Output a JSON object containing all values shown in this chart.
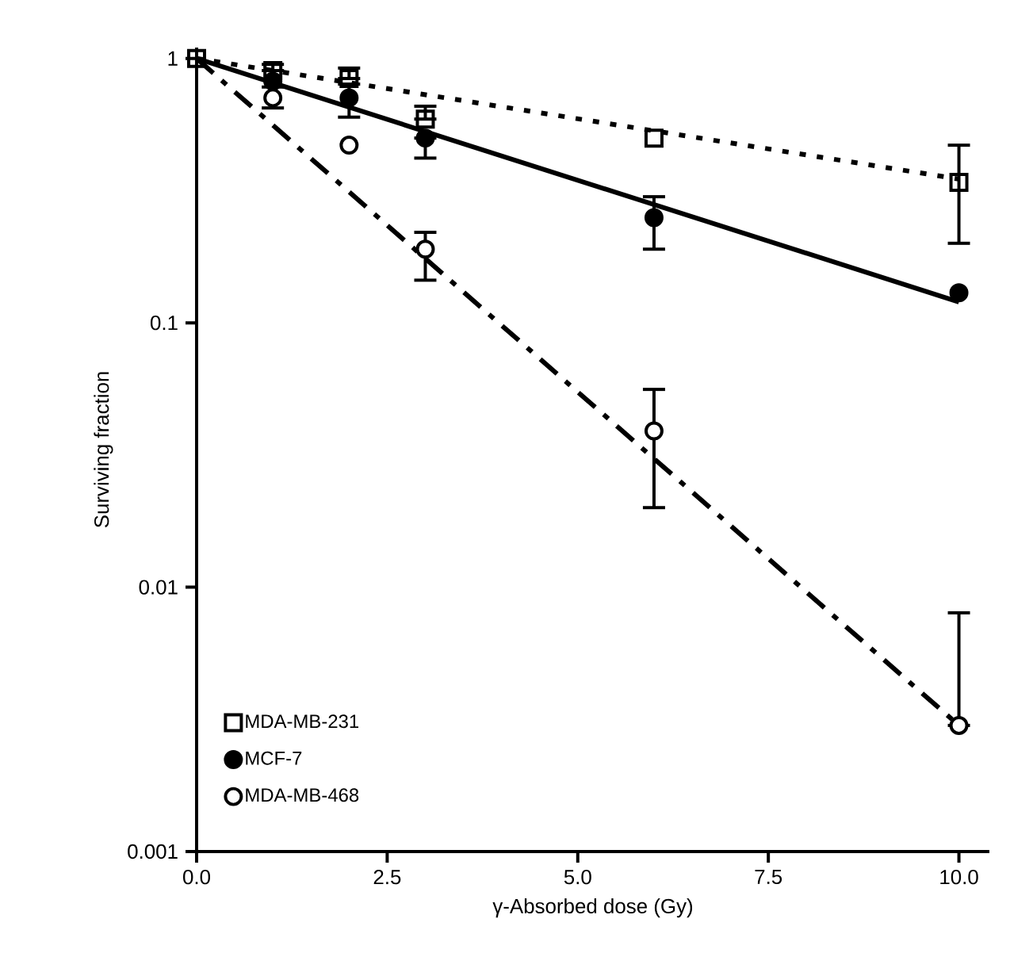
{
  "chart_data": {
    "type": "scatter",
    "xlabel": "γ-Absorbed dose (Gy)",
    "ylabel": "Surviving fraction",
    "log": "y",
    "grid": false,
    "legend": "bottom left",
    "xlim": [
      0,
      10.4
    ],
    "ylim": [
      0.001,
      1.1
    ],
    "xticks": [
      {
        "value": 0,
        "label": "0.0"
      },
      {
        "value": 2.5,
        "label": "2.5"
      },
      {
        "value": 5,
        "label": "5.0"
      },
      {
        "value": 7.5,
        "label": "7.5"
      },
      {
        "value": 10,
        "label": "10.0"
      }
    ],
    "yticks": [
      1,
      0.1,
      0.01,
      0.001
    ],
    "series": [
      {
        "name": "MDA-MB-231",
        "type": "scatter",
        "marker": "square",
        "color": "#000000",
        "x": [
          0,
          1,
          2,
          3,
          6,
          10
        ],
        "values": [
          1,
          0.9,
          0.84,
          0.59,
          0.5,
          0.34
        ],
        "errors": [
          null,
          [
            0.9,
            0.95
          ],
          [
            0.84,
            0.92
          ],
          [
            0.59,
            0.66
          ],
          null,
          [
            0.2,
            0.47
          ]
        ]
      },
      {
        "name": "MCF-7",
        "type": "scatter",
        "marker": "circle",
        "color": "#000000",
        "x": [
          1,
          2,
          3,
          6,
          10
        ],
        "values": [
          0.82,
          0.71,
          0.5,
          0.25,
          0.13
        ],
        "errors": [
          null,
          [
            0.6,
            0.8
          ],
          [
            0.42,
            0.5
          ],
          [
            0.19,
            0.3
          ],
          null
        ]
      },
      {
        "name": "MDA-MB-468",
        "type": "scatter",
        "marker": "circle",
        "color": "#000000",
        "x": [
          1,
          2,
          3,
          6,
          10
        ],
        "values": [
          0.71,
          0.47,
          0.19,
          0.039,
          0.003
        ],
        "errors": [
          [
            0.65,
            0.78
          ],
          null,
          [
            0.145,
            0.22
          ],
          [
            0.02,
            0.056
          ],
          [
            0.003,
            0.008
          ]
        ]
      },
      {
        "type": "line",
        "line_style": "dotted",
        "color": "#000000",
        "x": [
          0,
          10
        ],
        "values": [
          1,
          0.35
        ]
      },
      {
        "type": "line",
        "line_style": "solid",
        "color": "#000000",
        "x": [
          0,
          10
        ],
        "values": [
          1,
          0.12
        ]
      },
      {
        "type": "line",
        "line_style": "dashdotted",
        "color": "#000000",
        "x": [
          0,
          10
        ],
        "values": [
          1,
          0.003
        ]
      }
    ]
  }
}
